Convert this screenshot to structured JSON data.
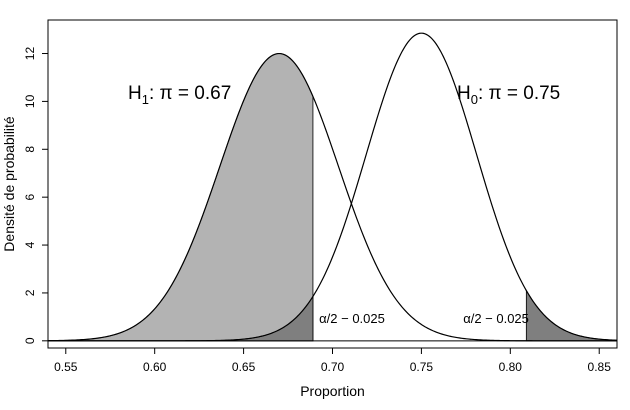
{
  "chart_data": {
    "type": "line",
    "title": "",
    "xlabel": "Proportion",
    "ylabel": "Densité de probabilité",
    "xlim": [
      0.54,
      0.86
    ],
    "ylim": [
      -0.3,
      13.4
    ],
    "x_ticks": [
      0.55,
      0.6,
      0.65,
      0.7,
      0.75,
      0.8,
      0.85
    ],
    "x_tick_labels": [
      "0.55",
      "0.60",
      "0.65",
      "0.70",
      "0.75",
      "0.80",
      "0.85"
    ],
    "y_ticks": [
      0,
      2,
      4,
      6,
      8,
      10,
      12
    ],
    "y_tick_labels": [
      "0",
      "2",
      "4",
      "6",
      "8",
      "10",
      "12"
    ],
    "grid": false,
    "series": [
      {
        "name": "H1",
        "mean": 0.67,
        "sd": 0.0334,
        "peak_density": 12.0
      },
      {
        "name": "H0",
        "mean": 0.75,
        "sd": 0.031,
        "peak_density": 12.85
      }
    ],
    "critical_values": {
      "lower": 0.689,
      "upper": 0.809
    },
    "shaded_regions": [
      {
        "series": "H1",
        "from": 0.54,
        "to": 0.689,
        "color": "#b3b3b3"
      },
      {
        "series": "H0",
        "from": 0.54,
        "to": 0.689,
        "color": "#7f7f7f"
      },
      {
        "series": "H0",
        "from": 0.809,
        "to": 0.86,
        "color": "#7f7f7f"
      }
    ],
    "annotations": {
      "h1": {
        "main": "H",
        "sub": "1",
        "rest": ":  π = 0.67",
        "x": 0.585,
        "y": 10.1
      },
      "h0": {
        "main": "H",
        "sub": "0",
        "rest": ":  π = 0.75",
        "x": 0.77,
        "y": 10.1
      },
      "alpha_left": {
        "text": "α/2 − 0.025",
        "x": 0.6925,
        "y": 0.75
      },
      "alpha_right": {
        "text": "α/2 − 0.025",
        "x": 0.7735,
        "y": 0.75
      }
    }
  }
}
